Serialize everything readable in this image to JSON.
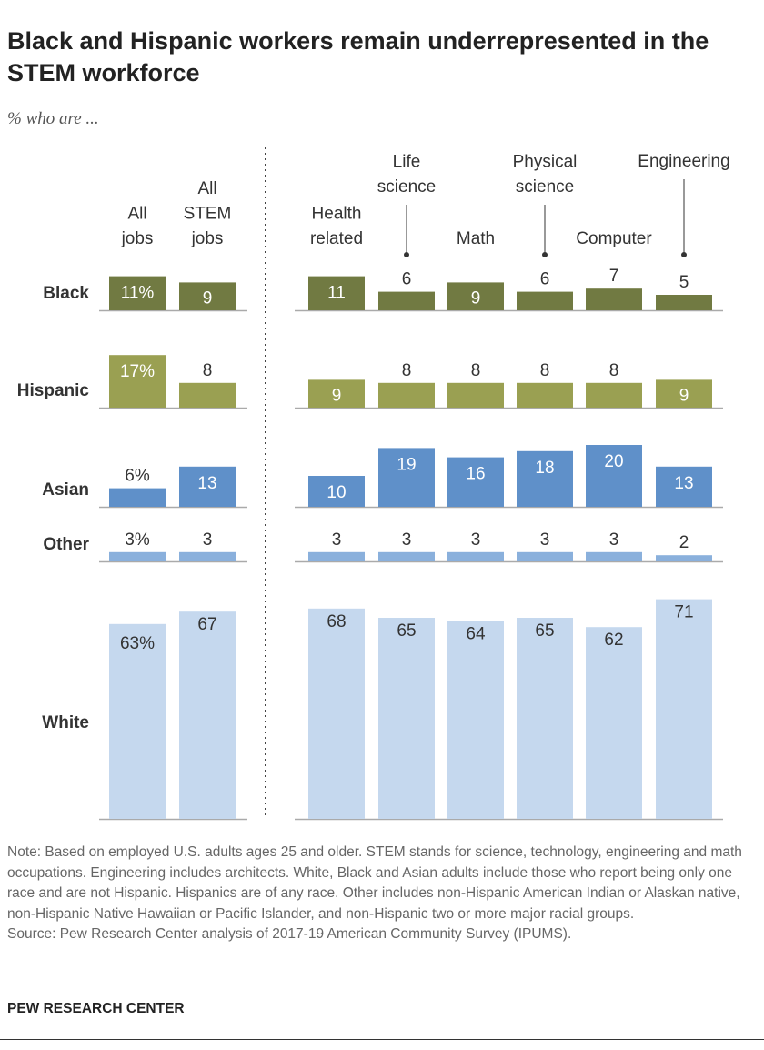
{
  "title": "Black and Hispanic workers remain underrepresented in the STEM workforce",
  "subtitle": "% who are ...",
  "chart_data": {
    "type": "bar",
    "title": "Black and Hispanic workers remain underrepresented in the STEM workforce",
    "subtitle": "% who are ...",
    "categories": [
      "All jobs",
      "All STEM jobs",
      "Health related",
      "Life science",
      "Math",
      "Physical science",
      "Computer",
      "Engineering"
    ],
    "category_lines": [
      [
        "All",
        "jobs"
      ],
      [
        "All",
        "STEM",
        "jobs"
      ],
      [
        "Health",
        "related"
      ],
      [
        "Life",
        "science"
      ],
      [
        "Math"
      ],
      [
        "Physical",
        "science"
      ],
      [
        "Computer"
      ],
      [
        "Engineering"
      ]
    ],
    "series": [
      {
        "name": "Black",
        "color": "#717a42",
        "values": [
          11,
          9,
          11,
          6,
          9,
          6,
          7,
          5
        ]
      },
      {
        "name": "Hispanic",
        "color": "#9aa052",
        "values": [
          17,
          8,
          9,
          8,
          8,
          8,
          8,
          9
        ]
      },
      {
        "name": "Asian",
        "color": "#5f90c9",
        "values": [
          6,
          13,
          10,
          19,
          16,
          18,
          20,
          13
        ]
      },
      {
        "name": "Other",
        "color": "#8ab0dc",
        "values": [
          3,
          3,
          3,
          3,
          3,
          3,
          3,
          2
        ]
      },
      {
        "name": "White",
        "color": "#c5d8ee",
        "values": [
          63,
          67,
          68,
          65,
          64,
          65,
          62,
          71
        ]
      }
    ],
    "first_column_percent_sign": true,
    "layout": "small multiples, rows by race, divider between overall and STEM job clusters"
  },
  "note": "Note: Based on employed U.S. adults ages 25 and older. STEM stands for science, technology, engineering and math occupations. Engineering includes architects. White, Black and Asian adults include those who report being only one race and are not Hispanic. Hispanics are of any race. Other includes non-Hispanic American Indian or Alaskan native, non-Hispanic Native Hawaiian or Pacific Islander, and non-Hispanic two or more major racial groups.",
  "source": "Source: Pew Research Center analysis of 2017-19 American Community Survey (IPUMS).",
  "brand": "PEW RESEARCH CENTER"
}
